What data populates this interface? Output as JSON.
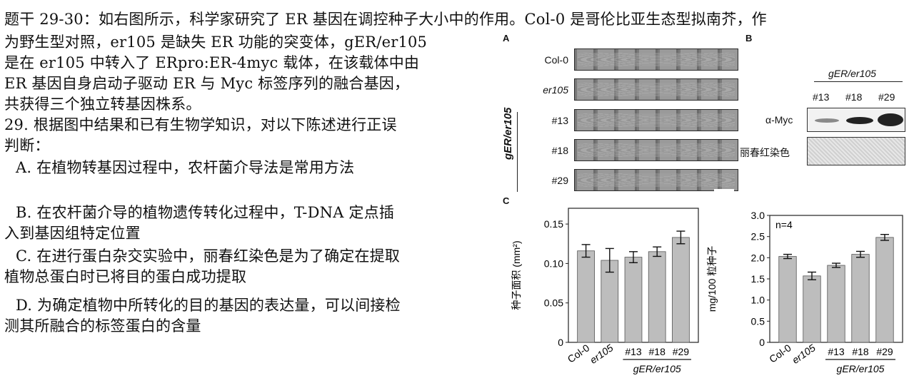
{
  "question": {
    "intro_line1": "题干 29-30：如右图所示，科学家研究了 ER 基因在调控种子大小中的作用。Col-0 是哥伦比亚生态型拟南芥，作",
    "intro_line2": "为野生型对照，er105 是缺失 ER 功能的突变体，gER/er105",
    "intro_line3": "是在 er105 中转入了 ERpro:ER-4myc 载体，在该载体中由",
    "intro_line4": "ER 基因自身启动子驱动 ER 与 Myc 标签序列的融合基因，",
    "intro_line5": "共获得三个独立转基因株系。",
    "q29_line1": "29. 根据图中结果和已有生物学知识，对以下陈述进行正误",
    "q29_line2": "判断：",
    "option_a": "A. 在植物转基因过程中，农杆菌介导法是常用方法",
    "option_b_line1": "B. 在农杆菌介导的植物遗传转化过程中，T-DNA 定点插",
    "option_b_line2": "入到基因组特定位置",
    "option_c_line1": "C. 在进行蛋白杂交实验中，丽春红染色是为了确定在提取",
    "option_c_line2": "植物总蛋白时已将目的蛋白成功提取",
    "option_d_line1": "D. 为确定植物中所转化的目的基因的表达量，可以间接检",
    "option_d_line2": "测其所融合的标签蛋白的含量"
  },
  "figure": {
    "panel_a": "A",
    "panel_b": "B",
    "panel_c": "C",
    "seed_rows": [
      "Col-0",
      "er105",
      "#13",
      "#18",
      "#29"
    ],
    "group_label": "gER/er105",
    "blot_title": "gER/er105",
    "blot_lanes": [
      "#13",
      "#18",
      "#29"
    ],
    "blot_myc_label": "α-Myc",
    "blot_stain_label": "丽春红染色",
    "chart_ytick_labels": [
      "0",
      "0.05",
      "0.10",
      "0.15"
    ],
    "chart2_ytick_labels": [
      "0",
      "0.5",
      "1.0",
      "1.5",
      "2.0",
      "2.5",
      "3.0"
    ],
    "bar_labels": [
      "Col-0",
      "er105",
      "#13",
      "#18",
      "#29"
    ],
    "bar_group_label": "gER/er105"
  },
  "chart_data": [
    {
      "type": "bar",
      "categories": [
        "Col-0",
        "er105",
        "#13",
        "#18",
        "#29"
      ],
      "values": [
        0.116,
        0.104,
        0.108,
        0.115,
        0.133
      ],
      "errors": [
        0.008,
        0.015,
        0.007,
        0.006,
        0.008
      ],
      "ylabel": "种子面积 (mm²)",
      "ylim": [
        0,
        0.17
      ],
      "yticks": [
        0,
        0.05,
        0.1,
        0.15
      ],
      "group_label": "gER/er105",
      "bar_color": "#bdbdbd"
    },
    {
      "type": "bar",
      "categories": [
        "Col-0",
        "er105",
        "#13",
        "#18",
        "#29"
      ],
      "values": [
        2.03,
        1.57,
        1.82,
        2.08,
        2.48
      ],
      "errors": [
        0.05,
        0.09,
        0.05,
        0.07,
        0.07
      ],
      "ylabel": "mg/100 粒种子",
      "annotation": "n=4",
      "ylim": [
        0,
        3.0
      ],
      "yticks": [
        0,
        0.5,
        1.0,
        1.5,
        2.0,
        2.5,
        3.0
      ],
      "group_label": "gER/er105",
      "bar_color": "#bdbdbd"
    }
  ],
  "colors": {
    "bar": "#bdbdbd",
    "axis": "#222222"
  }
}
